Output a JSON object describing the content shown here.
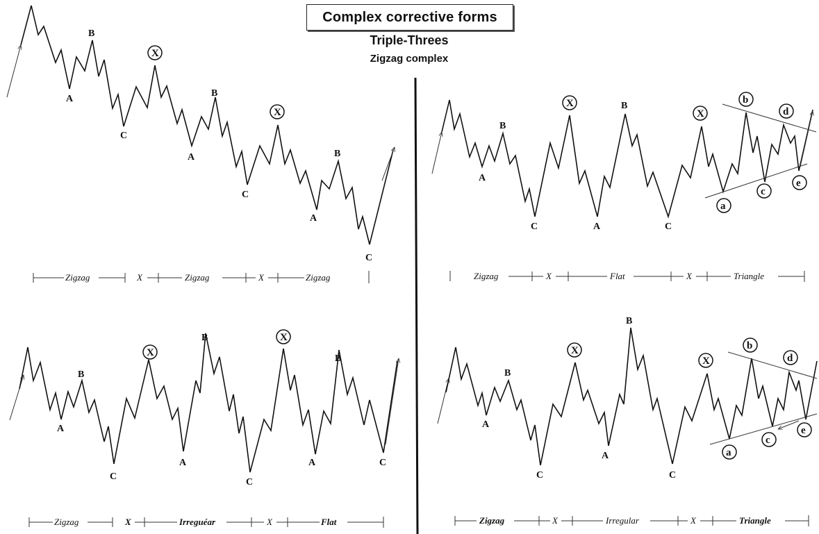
{
  "header": {
    "title": "Complex corrective forms",
    "subtitle": "Triple-Threes",
    "subtitle2": "Zigzag complex"
  },
  "panels": [
    {
      "id": "top-left",
      "wave_labels": [
        "A",
        "B",
        "C",
        "X",
        "B",
        "A",
        "C",
        "X",
        "B",
        "A",
        "C"
      ],
      "segments": [
        "Zigzag",
        "X",
        "Zigzag",
        "X",
        "Zigzag"
      ]
    },
    {
      "id": "top-right",
      "wave_labels": [
        "B",
        "A",
        "C",
        "X",
        "B",
        "A",
        "C",
        "X",
        "b",
        "d",
        "a",
        "c",
        "e"
      ],
      "segments": [
        "Zigzag",
        "X",
        "Flat",
        "X",
        "Triangle"
      ]
    },
    {
      "id": "bottom-left",
      "wave_labels": [
        "B",
        "A",
        "C",
        "X",
        "B",
        "A",
        "C",
        "X",
        "B",
        "A",
        "C"
      ],
      "segments": [
        "Zigzag",
        "X",
        "Irreguéar",
        "X",
        "Flat"
      ]
    },
    {
      "id": "bottom-right",
      "wave_labels": [
        "B",
        "A",
        "C",
        "X",
        "B",
        "A",
        "C",
        "X",
        "b",
        "d",
        "a",
        "c",
        "e"
      ],
      "segments": [
        "Zigzag",
        "X",
        "Irregular",
        "X",
        "Triangle"
      ]
    }
  ]
}
